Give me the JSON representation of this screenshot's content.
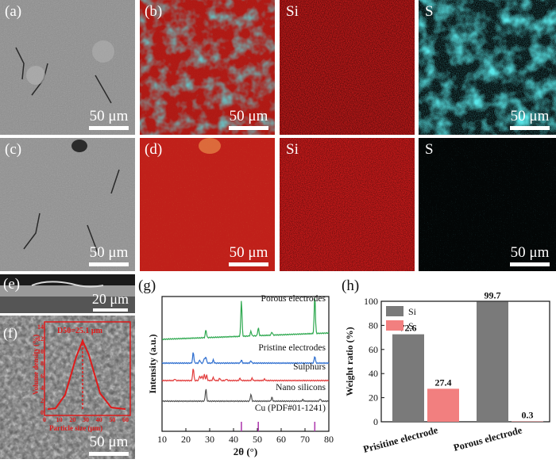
{
  "panels": {
    "a": {
      "label": "(a)",
      "scale": "50 μm"
    },
    "b": {
      "label": "(b)",
      "scale": "50 μm"
    },
    "b_si": {
      "label": "Si"
    },
    "b_s": {
      "label": "S",
      "scale": "50 μm"
    },
    "c": {
      "label": "(c)",
      "scale": "50 μm"
    },
    "d": {
      "label": "(d)",
      "scale": "50 μm"
    },
    "d_si": {
      "label": "Si"
    },
    "d_s": {
      "label": "S",
      "scale": "50 μm"
    },
    "e": {
      "label": "(e)",
      "scale": "20 μm"
    },
    "f": {
      "label": "(f)",
      "scale": "50 μm",
      "inset_text": "D50=25.1 μm",
      "inset_ylabel": "Volume density (%)",
      "inset_xlabel": "Particle size (μm)",
      "inset_yticks": [
        "0",
        "2",
        "4",
        "6",
        "8",
        "10",
        "12",
        "14"
      ],
      "inset_xticks": [
        "0",
        "10",
        "20",
        "30",
        "40",
        "50",
        "60"
      ]
    }
  },
  "colors": {
    "sem": "#8a8a8a",
    "si": "#d01a1a",
    "s": "#19bfc8",
    "sulphur_bar": "#f27f7f",
    "si_bar": "#7a7a7a"
  },
  "chart_data": [
    {
      "type": "line",
      "label": "(g)",
      "xlabel": "2θ (°)",
      "ylabel": "Intensity (a.u.)",
      "xlim": [
        10,
        80
      ],
      "xticks": [
        "10",
        "20",
        "30",
        "40",
        "50",
        "60",
        "70",
        "80"
      ],
      "series": [
        {
          "name": "Porous electrodes",
          "color": "#2ea84f"
        },
        {
          "name": "Pristine electrodes",
          "color": "#2f6fd0"
        },
        {
          "name": "Sulphurs",
          "color": "#e23c3c"
        },
        {
          "name": "Nano silicons",
          "color": "#555555"
        },
        {
          "name": "Cu (PDF#01-1241)",
          "color": "#b03fb0",
          "x": [
            43.3,
            50.4,
            74.1
          ]
        }
      ]
    },
    {
      "type": "bar",
      "label": "(h)",
      "ylabel": "Weight ratio (%)",
      "ylim": [
        0,
        100
      ],
      "yticks": [
        "0",
        "20",
        "40",
        "60",
        "80",
        "100"
      ],
      "categories": [
        "Prisitine electrode",
        "Porous electrode"
      ],
      "series": [
        {
          "name": "Si",
          "values": [
            72.6,
            99.7
          ],
          "labels": [
            "72.6",
            "99.7"
          ]
        },
        {
          "name": "S",
          "values": [
            27.4,
            0.3
          ],
          "labels": [
            "27.4",
            "0.3"
          ]
        }
      ]
    }
  ]
}
